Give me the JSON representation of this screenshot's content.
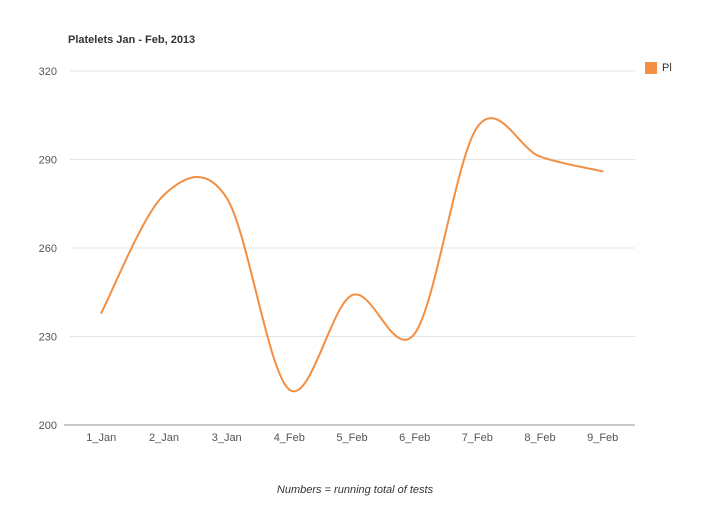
{
  "title": "Platelets Jan - Feb, 2013",
  "legend": {
    "label": "Pl",
    "swatch_color": "#f28f43"
  },
  "caption": "Numbers = running total of tests",
  "chart_data": {
    "type": "line",
    "subtype": "spline",
    "title": "Platelets Jan - Feb, 2013",
    "categories": [
      "1_Jan",
      "2_Jan",
      "3_Jan",
      "4_Feb",
      "5_Feb",
      "6_Feb",
      "7_Feb",
      "8_Feb",
      "9_Feb"
    ],
    "series": [
      {
        "name": "Pl",
        "color": "#f28f43",
        "values": [
          238,
          278,
          277,
          212,
          244,
          231,
          301,
          291,
          286
        ]
      }
    ],
    "xlabel": "",
    "ylabel": "",
    "ylim": [
      200,
      320
    ],
    "yticks": [
      200,
      230,
      260,
      290,
      320
    ],
    "grid": true,
    "legend_position": "top-right",
    "caption": "Numbers = running total of tests"
  },
  "colors": {
    "background": "#ffffff",
    "grid": "#e6e6e6",
    "axis": "#c9c9c9",
    "tick_text": "#555555",
    "title_text": "#333333",
    "series": "#f28f43"
  }
}
